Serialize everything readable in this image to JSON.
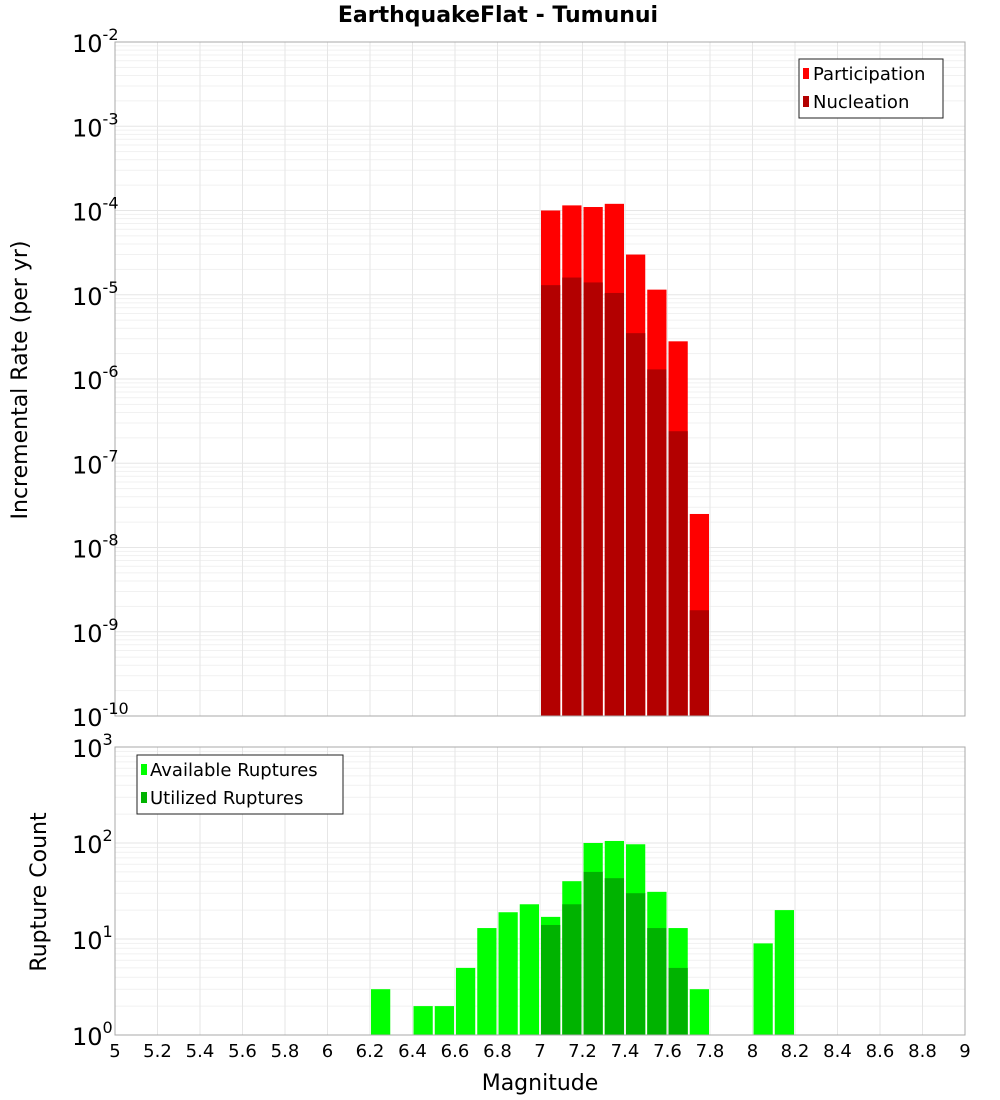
{
  "chart_data": {
    "title": "EarthquakeFlat - Tumunui",
    "xlabel": "Magnitude",
    "xlim": [
      5,
      9
    ],
    "xticks": [
      "5",
      "5.2",
      "5.4",
      "5.6",
      "5.8",
      "6",
      "6.2",
      "6.4",
      "6.6",
      "6.8",
      "7",
      "7.2",
      "7.4",
      "7.6",
      "7.8",
      "8",
      "8.2",
      "8.4",
      "8.6",
      "8.8",
      "9"
    ],
    "bin_width": 0.1,
    "panels": [
      {
        "id": "rate",
        "type": "bar",
        "yscale": "log",
        "ylabel": "Incremental Rate (per yr)",
        "ylim_exp": [
          -10,
          -2
        ],
        "ytick_exponents": [
          "-10",
          "-9",
          "-8",
          "-7",
          "-6",
          "-5",
          "-4",
          "-3",
          "-2"
        ],
        "legend_position": "top-right",
        "series": [
          {
            "name": "Participation",
            "color": "#ff0000",
            "x": [
              7.05,
              7.15,
              7.25,
              7.35,
              7.45,
              7.55,
              7.65,
              7.75
            ],
            "values": [
              0.0001,
              0.000115,
              0.00011,
              0.00012,
              3e-05,
              1.15e-05,
              2.8e-06,
              2.5e-08
            ]
          },
          {
            "name": "Nucleation",
            "color": "#b30000",
            "x": [
              7.05,
              7.15,
              7.25,
              7.35,
              7.45,
              7.55,
              7.65,
              7.75
            ],
            "values": [
              1.3e-05,
              1.6e-05,
              1.4e-05,
              1.05e-05,
              3.5e-06,
              1.3e-06,
              2.4e-07,
              1.8e-09
            ]
          }
        ]
      },
      {
        "id": "count",
        "type": "bar",
        "yscale": "log",
        "ylabel": "Rupture Count",
        "ylim_exp": [
          0,
          3
        ],
        "ytick_exponents": [
          "0",
          "1",
          "2",
          "3"
        ],
        "legend_position": "top-left",
        "series": [
          {
            "name": "Available Ruptures",
            "color": "#00ff00",
            "x": [
              6.25,
              6.45,
              6.55,
              6.65,
              6.75,
              6.85,
              6.95,
              7.05,
              7.15,
              7.25,
              7.35,
              7.45,
              7.55,
              7.65,
              7.75,
              8.05,
              8.15
            ],
            "values": [
              3,
              2,
              2,
              5,
              13,
              19,
              23,
              17,
              40,
              100,
              105,
              97,
              31,
              13,
              3,
              9,
              20
            ]
          },
          {
            "name": "Utilized Ruptures",
            "color": "#00b300",
            "x": [
              7.05,
              7.15,
              7.25,
              7.35,
              7.45,
              7.55,
              7.65,
              7.75
            ],
            "values": [
              14,
              23,
              50,
              43,
              30,
              13,
              5,
              1
            ]
          }
        ]
      }
    ]
  }
}
